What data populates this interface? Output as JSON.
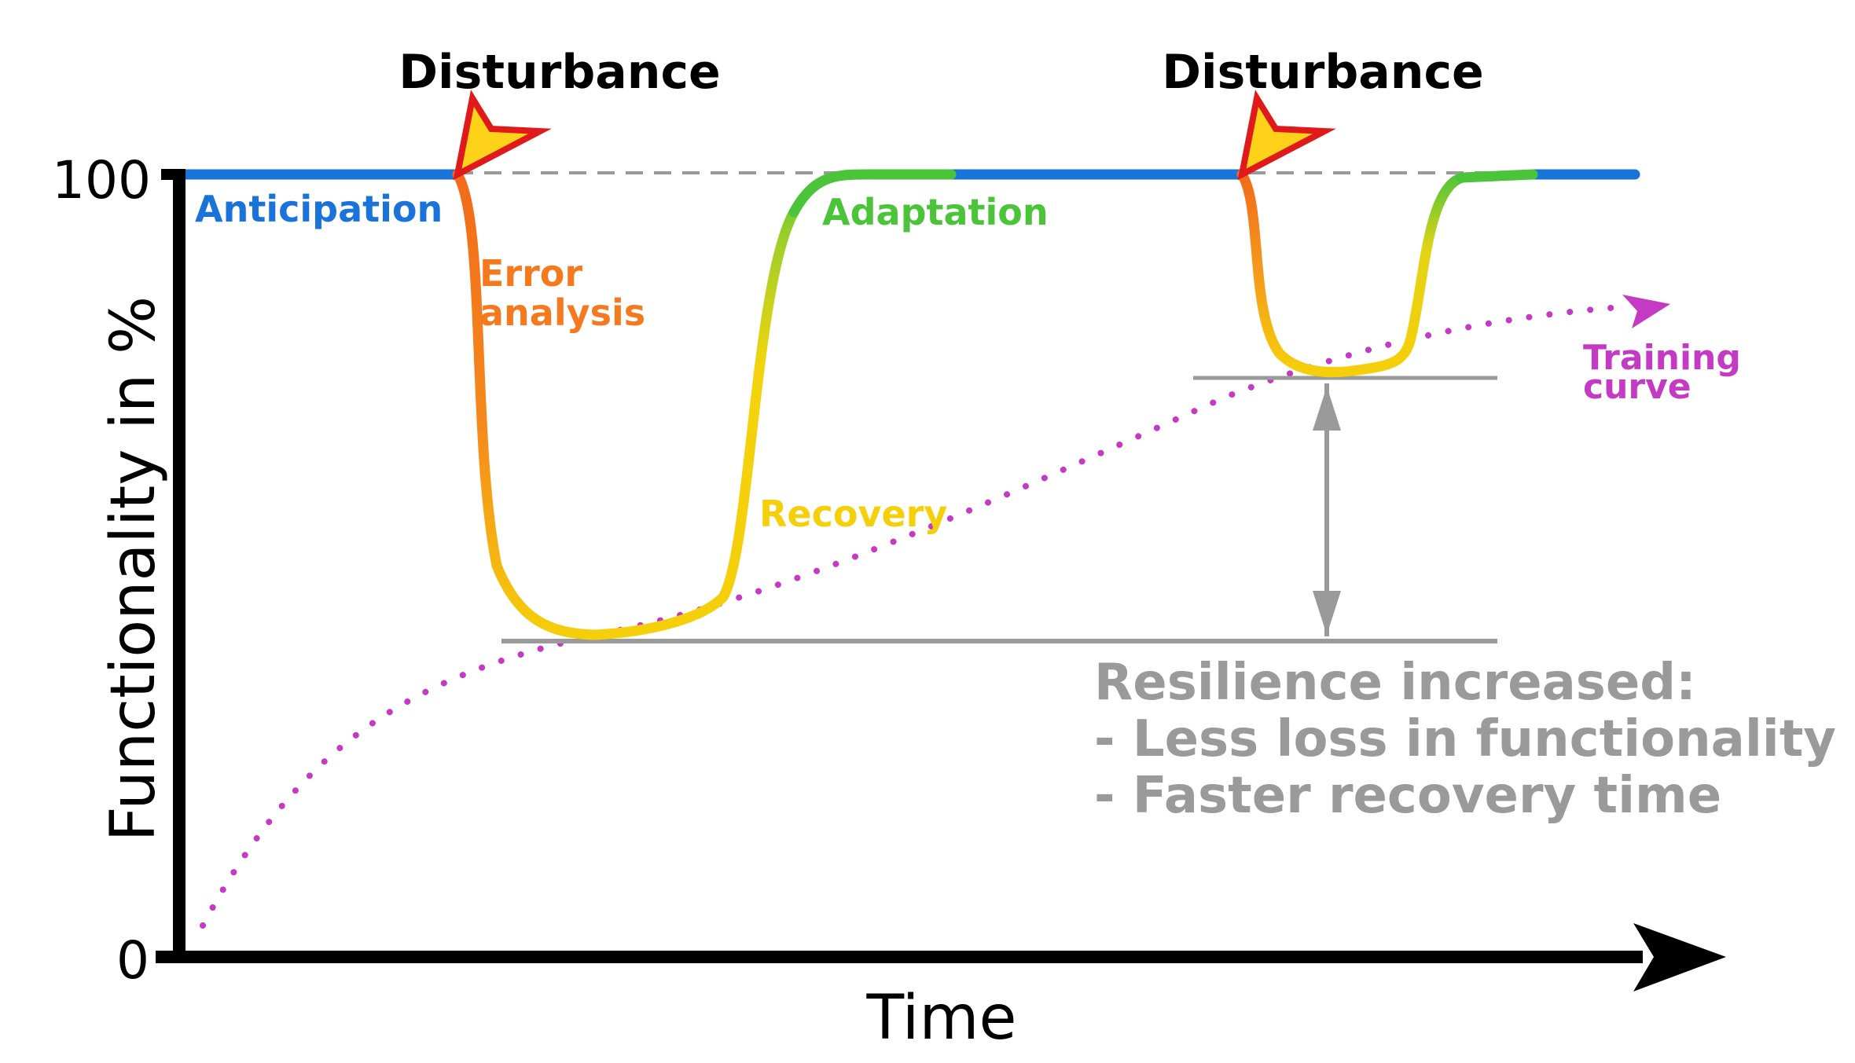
{
  "axes": {
    "x_label": "Time",
    "y_label": "Functionality in %",
    "y_tick_top": "100",
    "y_tick_bottom": "0"
  },
  "events": [
    {
      "label": "Disturbance"
    },
    {
      "label": "Disturbance"
    }
  ],
  "phases": {
    "anticipation": "Anticipation",
    "error_analysis_line1": "Error",
    "error_analysis_line2": "analysis",
    "recovery": "Recovery",
    "adaptation": "Adaptation"
  },
  "training": {
    "line1": "Training",
    "line2": "curve"
  },
  "resilience": {
    "title": "Resilience increased:",
    "point1": "- Less loss in functionality",
    "point2": "- Faster recovery time"
  },
  "colors": {
    "anticipation": "#1a73d9",
    "error": "#f57a1f",
    "recovery": "#f5cf0a",
    "adaptation": "#4cc43a",
    "training": "#c43ac4",
    "gray": "#9a9a9a",
    "axis": "#000000",
    "bolt_fill": "#ffd21a",
    "bolt_stroke": "#e01a1a"
  }
}
